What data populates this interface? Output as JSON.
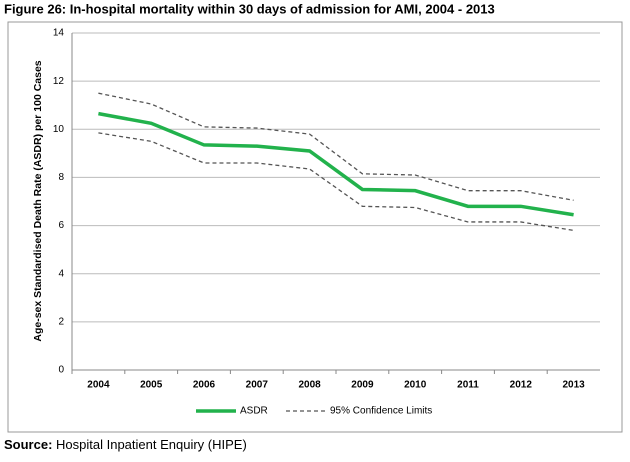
{
  "chart_data": {
    "type": "line",
    "title": "Figure 26: In-hospital mortality within 30 days of admission for AMI, 2004 - 2013",
    "y_label": "Age-sex Standardised Death Rate (ASDR) per 100 Cases",
    "categories": [
      "2004",
      "2005",
      "2006",
      "2007",
      "2008",
      "2009",
      "2010",
      "2011",
      "2012",
      "2013"
    ],
    "series": [
      {
        "name": "ASDR",
        "color": "#22b24c",
        "values": [
          10.65,
          10.25,
          9.35,
          9.3,
          9.1,
          7.5,
          7.45,
          6.8,
          6.8,
          6.45
        ]
      }
    ],
    "confidence_limits": {
      "name": "95% Confidence Limits",
      "color": "#555555",
      "upper": [
        11.5,
        11.05,
        10.1,
        10.05,
        9.8,
        8.15,
        8.1,
        7.45,
        7.45,
        7.05
      ],
      "lower": [
        9.85,
        9.5,
        8.6,
        8.6,
        8.35,
        6.8,
        6.75,
        6.15,
        6.15,
        5.8
      ]
    },
    "ylim": [
      0,
      14
    ],
    "yticks": [
      0,
      2,
      4,
      6,
      8,
      10,
      12,
      14
    ],
    "grid": true,
    "legend": "bottom",
    "source": {
      "label": "Source:",
      "text": "Hospital Inpatient Enquiry (HIPE)"
    }
  }
}
